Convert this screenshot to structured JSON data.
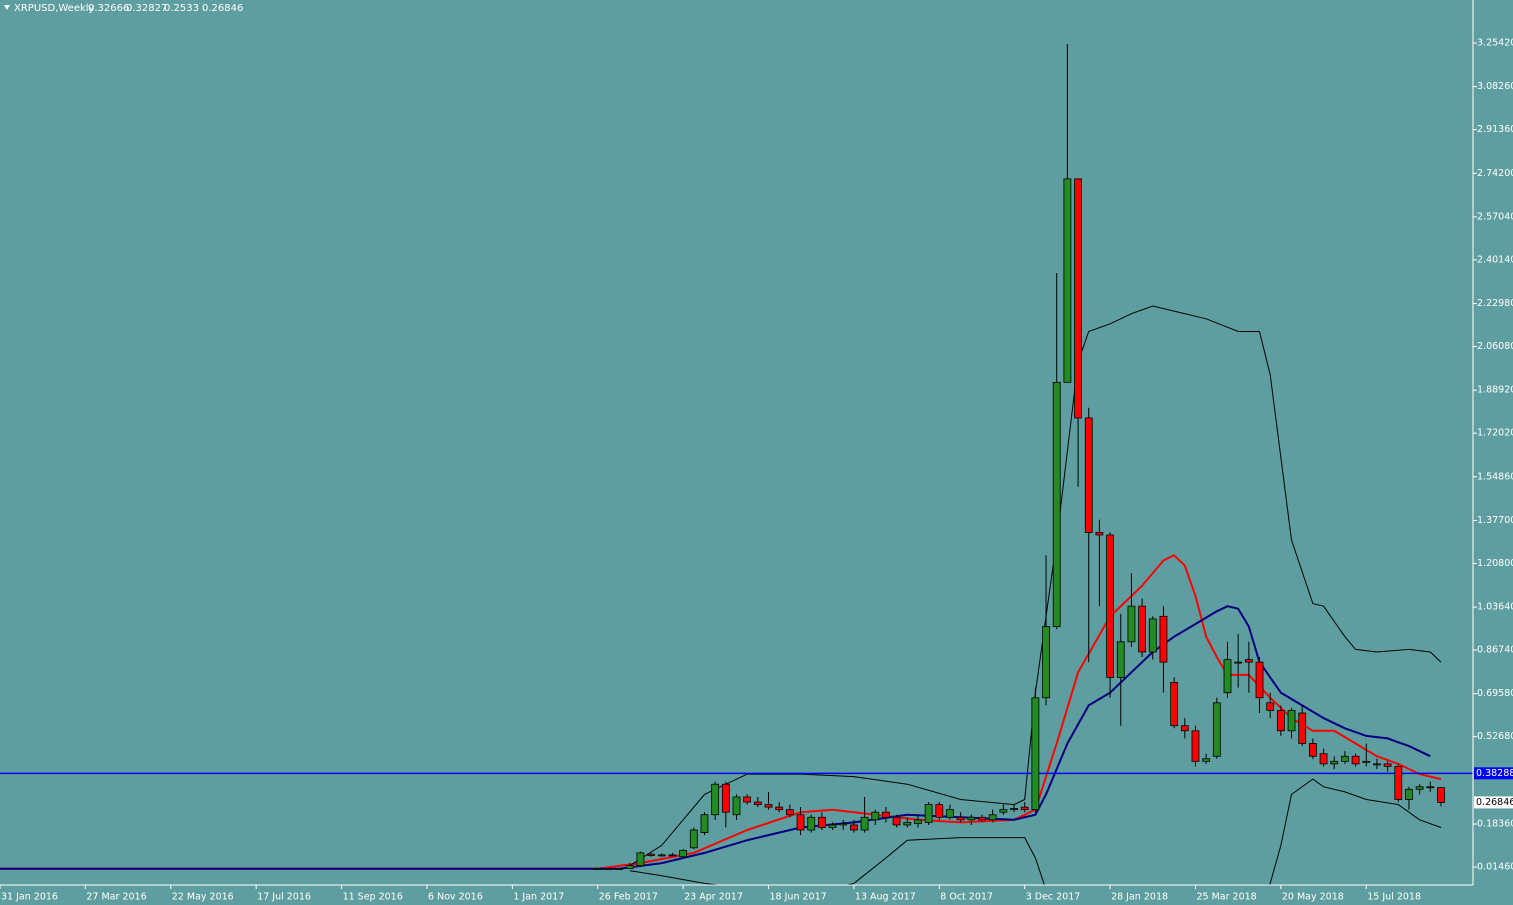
{
  "chart_data": {
    "type": "candlestick",
    "title": "XRPUSD,Weekly",
    "background": "#5f9ea0",
    "up_color": "#228b22",
    "down_color": "#ff0000",
    "x": [
      56,
      57,
      58,
      59,
      60,
      61,
      62,
      63,
      64,
      65,
      66,
      67,
      68,
      69,
      70,
      71,
      72,
      73,
      74,
      75,
      76,
      77,
      78,
      79,
      80,
      81,
      82,
      83,
      84,
      85,
      86,
      87,
      88,
      89,
      90,
      91,
      92,
      93,
      94,
      95,
      96,
      97,
      98,
      99,
      100,
      101,
      102,
      103,
      104,
      105,
      106,
      107,
      108,
      109,
      110,
      111,
      112,
      113,
      114,
      115,
      116,
      117,
      118,
      119,
      120,
      121,
      122,
      123,
      124,
      125,
      126,
      127,
      128,
      129,
      130,
      131,
      132,
      133,
      134,
      135
    ],
    "open": [
      0.008,
      0.009,
      0.008,
      0.009,
      0.02,
      0.065,
      0.06,
      0.062,
      0.055,
      0.09,
      0.15,
      0.22,
      0.34,
      0.22,
      0.29,
      0.27,
      0.26,
      0.25,
      0.24,
      0.22,
      0.16,
      0.21,
      0.17,
      0.18,
      0.18,
      0.16,
      0.2,
      0.23,
      0.21,
      0.18,
      0.185,
      0.19,
      0.26,
      0.21,
      0.21,
      0.2,
      0.21,
      0.2,
      0.23,
      0.24,
      0.25,
      0.24,
      0.68,
      0.96,
      1.92,
      2.72,
      1.78,
      1.33,
      1.32,
      0.76,
      0.9,
      1.04,
      0.86,
      1.0,
      0.74,
      0.57,
      0.55,
      0.43,
      0.45,
      0.7,
      0.82,
      0.83,
      0.82,
      0.66,
      0.63,
      0.55,
      0.62,
      0.5,
      0.46,
      0.42,
      0.43,
      0.45,
      0.43,
      0.42,
      0.42,
      0.41,
      0.28,
      0.32,
      0.33,
      0.32666
    ],
    "high": [
      0.01,
      0.01,
      0.01,
      0.03,
      0.075,
      0.07,
      0.068,
      0.07,
      0.085,
      0.17,
      0.23,
      0.35,
      0.35,
      0.3,
      0.3,
      0.29,
      0.31,
      0.27,
      0.26,
      0.25,
      0.22,
      0.23,
      0.19,
      0.2,
      0.2,
      0.29,
      0.24,
      0.25,
      0.22,
      0.21,
      0.22,
      0.27,
      0.27,
      0.26,
      0.23,
      0.22,
      0.22,
      0.24,
      0.26,
      0.26,
      0.27,
      0.72,
      1.24,
      2.35,
      3.25,
      2.72,
      1.82,
      1.38,
      1.33,
      1.01,
      1.17,
      1.07,
      1.0,
      1.04,
      0.76,
      0.6,
      0.57,
      0.46,
      0.68,
      0.9,
      0.93,
      0.9,
      0.84,
      0.7,
      0.65,
      0.64,
      0.65,
      0.52,
      0.48,
      0.45,
      0.47,
      0.46,
      0.5,
      0.44,
      0.43,
      0.42,
      0.33,
      0.34,
      0.35,
      0.32827
    ],
    "low": [
      0.006,
      0.007,
      0.006,
      0.008,
      0.015,
      0.055,
      0.055,
      0.058,
      0.05,
      0.085,
      0.14,
      0.2,
      0.17,
      0.2,
      0.26,
      0.25,
      0.24,
      0.23,
      0.21,
      0.14,
      0.15,
      0.16,
      0.16,
      0.16,
      0.15,
      0.15,
      0.18,
      0.19,
      0.17,
      0.17,
      0.17,
      0.18,
      0.2,
      0.2,
      0.19,
      0.18,
      0.19,
      0.19,
      0.22,
      0.23,
      0.23,
      0.23,
      0.65,
      0.95,
      1.92,
      1.51,
      0.82,
      1.04,
      0.68,
      0.57,
      0.88,
      0.84,
      0.83,
      0.7,
      0.56,
      0.52,
      0.41,
      0.42,
      0.44,
      0.68,
      0.72,
      0.7,
      0.62,
      0.6,
      0.53,
      0.52,
      0.49,
      0.44,
      0.41,
      0.4,
      0.42,
      0.41,
      0.41,
      0.4,
      0.39,
      0.27,
      0.24,
      0.3,
      0.31,
      0.2533
    ],
    "close": [
      0.009,
      0.008,
      0.009,
      0.02,
      0.07,
      0.06,
      0.062,
      0.06,
      0.08,
      0.16,
      0.22,
      0.34,
      0.23,
      0.29,
      0.27,
      0.26,
      0.25,
      0.24,
      0.22,
      0.16,
      0.21,
      0.17,
      0.18,
      0.185,
      0.16,
      0.21,
      0.23,
      0.21,
      0.18,
      0.19,
      0.2,
      0.26,
      0.21,
      0.24,
      0.2,
      0.21,
      0.2,
      0.22,
      0.24,
      0.245,
      0.24,
      0.68,
      0.96,
      1.92,
      2.72,
      1.78,
      1.33,
      1.32,
      0.76,
      0.9,
      1.04,
      0.86,
      0.99,
      0.82,
      0.57,
      0.55,
      0.43,
      0.44,
      0.66,
      0.83,
      0.82,
      0.82,
      0.68,
      0.63,
      0.55,
      0.63,
      0.5,
      0.45,
      0.42,
      0.43,
      0.45,
      0.42,
      0.43,
      0.42,
      0.41,
      0.28,
      0.32,
      0.33,
      0.327,
      0.26846
    ],
    "lines": [
      {
        "color": "#ff0000",
        "width": 2,
        "x": [
          0,
          56,
          60,
          65,
          70,
          75,
          78,
          82,
          86,
          90,
          95,
          97,
          99,
          101,
          104,
          107,
          109,
          110,
          111,
          112,
          113,
          114,
          115,
          117,
          119,
          121,
          123,
          125,
          127,
          129,
          131,
          133,
          135
        ],
        "values": [
          0.008,
          0.008,
          0.03,
          0.07,
          0.16,
          0.23,
          0.24,
          0.22,
          0.2,
          0.19,
          0.2,
          0.24,
          0.5,
          0.78,
          1.0,
          1.12,
          1.22,
          1.24,
          1.2,
          1.08,
          0.92,
          0.84,
          0.77,
          0.77,
          0.68,
          0.6,
          0.55,
          0.55,
          0.5,
          0.45,
          0.42,
          0.38,
          0.36
        ]
      },
      {
        "color": "#000080",
        "width": 2,
        "x": [
          0,
          58,
          62,
          66,
          70,
          75,
          80,
          85,
          90,
          95,
          97,
          98,
          100,
          102,
          104,
          106,
          108,
          110,
          112,
          114,
          115,
          116,
          117,
          118,
          120,
          122,
          124,
          126,
          128,
          130,
          132,
          134
        ],
        "values": [
          0.008,
          0.008,
          0.03,
          0.07,
          0.12,
          0.17,
          0.19,
          0.22,
          0.21,
          0.2,
          0.22,
          0.3,
          0.5,
          0.65,
          0.7,
          0.78,
          0.86,
          0.92,
          0.97,
          1.02,
          1.04,
          1.03,
          0.96,
          0.82,
          0.7,
          0.65,
          0.6,
          0.56,
          0.53,
          0.52,
          0.49,
          0.45
        ]
      },
      {
        "color": "#000000",
        "width": 1,
        "x": [
          59,
          62,
          66,
          70,
          75,
          80,
          85,
          90,
          95,
          96,
          97,
          99,
          101,
          102,
          104,
          106,
          108,
          110,
          113,
          116,
          118,
          119,
          121,
          123,
          124,
          126,
          127,
          129,
          132,
          134,
          135
        ],
        "values": [
          0.02,
          0.1,
          0.3,
          0.38,
          0.38,
          0.37,
          0.34,
          0.28,
          0.26,
          0.28,
          0.7,
          1.3,
          2.0,
          2.12,
          2.15,
          2.19,
          2.22,
          2.2,
          2.17,
          2.12,
          2.12,
          1.95,
          1.3,
          1.05,
          1.04,
          0.92,
          0.87,
          0.86,
          0.87,
          0.86,
          0.82
        ]
      },
      {
        "color": "#000000",
        "width": 1,
        "x": [
          59,
          62,
          66,
          70,
          75,
          80,
          83,
          85,
          90,
          96,
          97,
          99,
          118,
          119,
          120,
          121,
          123,
          124,
          126,
          128,
          131,
          133,
          135
        ],
        "values": [
          0.0,
          -0.02,
          -0.05,
          -0.07,
          -0.1,
          -0.05,
          0.05,
          0.12,
          0.13,
          0.13,
          0.05,
          -0.2,
          -0.2,
          -0.05,
          0.1,
          0.3,
          0.36,
          0.33,
          0.31,
          0.28,
          0.26,
          0.2,
          0.17
        ]
      }
    ],
    "hline": {
      "value": 0.38288,
      "color": "#0000ff"
    },
    "xlim": [
      0,
      138
    ],
    "ylim": [
      -0.0562,
      3.4232
    ],
    "xticks": [
      {
        "value": 0,
        "label": "31 Jan 2016"
      },
      {
        "value": 8,
        "label": "27 Mar 2016"
      },
      {
        "value": 16,
        "label": "22 May 2016"
      },
      {
        "value": 24,
        "label": "17 Jul 2016"
      },
      {
        "value": 32,
        "label": "11 Sep 2016"
      },
      {
        "value": 40,
        "label": "6 Nov 2016"
      },
      {
        "value": 48,
        "label": "1 Jan 2017"
      },
      {
        "value": 56,
        "label": "26 Feb 2017"
      },
      {
        "value": 64,
        "label": "23 Apr 2017"
      },
      {
        "value": 72,
        "label": "18 Jun 2017"
      },
      {
        "value": 80,
        "label": "13 Aug 2017"
      },
      {
        "value": 88,
        "label": "8 Oct 2017"
      },
      {
        "value": 96,
        "label": "3 Dec 2017"
      },
      {
        "value": 104,
        "label": "28 Jan 2018"
      },
      {
        "value": 112,
        "label": "25 Mar 2018"
      },
      {
        "value": 120,
        "label": "20 May 2018"
      },
      {
        "value": 128,
        "label": "15 Jul 2018"
      }
    ],
    "yticks": [
      {
        "value": 0.0146,
        "label": "0.01460"
      },
      {
        "value": 0.1836,
        "label": "0.18360"
      },
      {
        "value": 0.5268,
        "label": "0.52680"
      },
      {
        "value": 0.6958,
        "label": "0.69580"
      },
      {
        "value": 0.8674,
        "label": "0.86740"
      },
      {
        "value": 1.0364,
        "label": "1.03640"
      },
      {
        "value": 1.208,
        "label": "1.20800"
      },
      {
        "value": 1.377,
        "label": "1.37700"
      },
      {
        "value": 1.5486,
        "label": "1.54860"
      },
      {
        "value": 1.7202,
        "label": "1.72020"
      },
      {
        "value": 1.8892,
        "label": "1.88920"
      },
      {
        "value": 2.0608,
        "label": "2.06080"
      },
      {
        "value": 2.2298,
        "label": "2.22980"
      },
      {
        "value": 2.4014,
        "label": "2.40140"
      },
      {
        "value": 2.5704,
        "label": "2.57040"
      },
      {
        "value": 2.742,
        "label": "2.74200"
      },
      {
        "value": 2.9136,
        "label": "2.91360"
      },
      {
        "value": 3.0826,
        "label": "3.08260"
      },
      {
        "value": 3.2542,
        "label": "3.25420"
      }
    ]
  }
}
